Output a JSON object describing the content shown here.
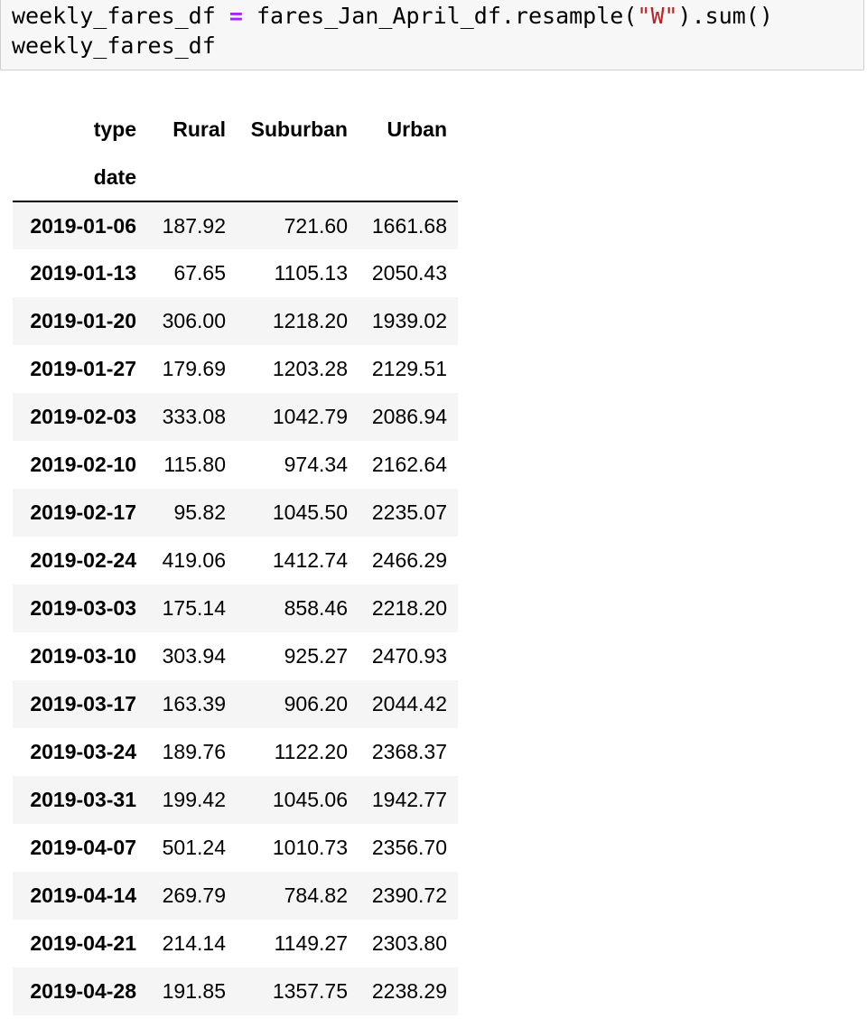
{
  "code_cell": {
    "line1": {
      "var": "weekly_fares_df ",
      "op": "=",
      "expr_start": " fares_Jan_April_df.resample(",
      "string": "\"W\"",
      "expr_end": ").sum()"
    },
    "line2": "weekly_fares_df"
  },
  "dataframe": {
    "columns_name": "type",
    "index_name": "date",
    "columns": [
      "Rural",
      "Suburban",
      "Urban"
    ],
    "rows": [
      {
        "date": "2019-01-06",
        "values": [
          "187.92",
          "721.60",
          "1661.68"
        ]
      },
      {
        "date": "2019-01-13",
        "values": [
          "67.65",
          "1105.13",
          "2050.43"
        ]
      },
      {
        "date": "2019-01-20",
        "values": [
          "306.00",
          "1218.20",
          "1939.02"
        ]
      },
      {
        "date": "2019-01-27",
        "values": [
          "179.69",
          "1203.28",
          "2129.51"
        ]
      },
      {
        "date": "2019-02-03",
        "values": [
          "333.08",
          "1042.79",
          "2086.94"
        ]
      },
      {
        "date": "2019-02-10",
        "values": [
          "115.80",
          "974.34",
          "2162.64"
        ]
      },
      {
        "date": "2019-02-17",
        "values": [
          "95.82",
          "1045.50",
          "2235.07"
        ]
      },
      {
        "date": "2019-02-24",
        "values": [
          "419.06",
          "1412.74",
          "2466.29"
        ]
      },
      {
        "date": "2019-03-03",
        "values": [
          "175.14",
          "858.46",
          "2218.20"
        ]
      },
      {
        "date": "2019-03-10",
        "values": [
          "303.94",
          "925.27",
          "2470.93"
        ]
      },
      {
        "date": "2019-03-17",
        "values": [
          "163.39",
          "906.20",
          "2044.42"
        ]
      },
      {
        "date": "2019-03-24",
        "values": [
          "189.76",
          "1122.20",
          "2368.37"
        ]
      },
      {
        "date": "2019-03-31",
        "values": [
          "199.42",
          "1045.06",
          "1942.77"
        ]
      },
      {
        "date": "2019-04-07",
        "values": [
          "501.24",
          "1010.73",
          "2356.70"
        ]
      },
      {
        "date": "2019-04-14",
        "values": [
          "269.79",
          "784.82",
          "2390.72"
        ]
      },
      {
        "date": "2019-04-21",
        "values": [
          "214.14",
          "1149.27",
          "2303.80"
        ]
      },
      {
        "date": "2019-04-28",
        "values": [
          "191.85",
          "1357.75",
          "2238.29"
        ]
      }
    ]
  }
}
